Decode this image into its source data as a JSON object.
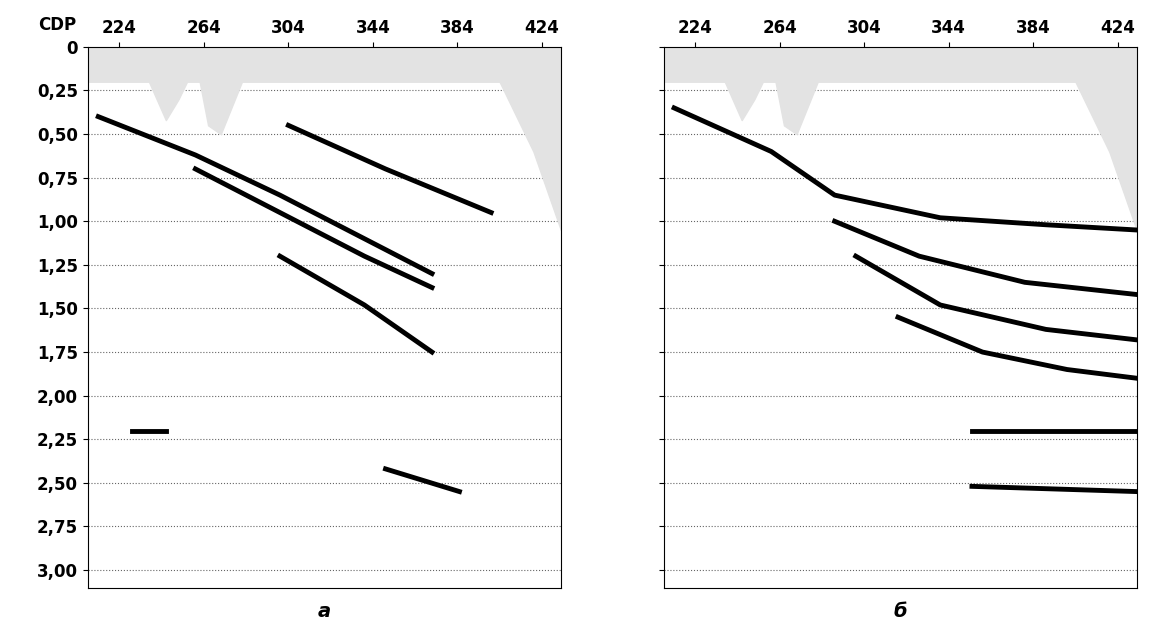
{
  "chart_data": [
    {
      "type": "line",
      "label": "а",
      "xlabel": "CDP",
      "grid": true,
      "tick_labels": true,
      "xlim": [
        209,
        433
      ],
      "ylim": [
        3.1,
        0
      ],
      "xticks": [
        224,
        264,
        304,
        344,
        384,
        424
      ],
      "yticks": [
        0,
        {
          "value": 0.25,
          "label": "0,25"
        },
        {
          "value": 0.5,
          "label": "0,50"
        },
        {
          "value": 0.75,
          "label": "0,75"
        },
        {
          "value": 1.0,
          "label": "1,00"
        },
        {
          "value": 1.25,
          "label": "1,25"
        },
        {
          "value": 1.5,
          "label": "1,50"
        },
        {
          "value": 1.75,
          "label": "1,75"
        },
        {
          "value": 2.0,
          "label": "2,00"
        },
        {
          "value": 2.25,
          "label": "2,25"
        },
        {
          "value": 2.5,
          "label": "2,50"
        },
        {
          "value": 2.75,
          "label": "2,75"
        },
        {
          "value": 3.0,
          "label": "3,00"
        }
      ],
      "series": [
        {
          "type": "area",
          "color": "#e3e3e3",
          "x": [
            209,
            238,
            246,
            252,
            256,
            262,
            266,
            272,
            282,
            404,
            420,
            433
          ],
          "values": [
            0.2,
            0.2,
            0.42,
            0.3,
            0.2,
            0.2,
            0.45,
            0.5,
            0.2,
            0.2,
            0.6,
            1.05
          ]
        },
        {
          "type": "line",
          "color": "#000000",
          "x": [
            214,
            260,
            300,
            340,
            372
          ],
          "values": [
            0.4,
            0.62,
            0.85,
            1.1,
            1.3
          ]
        },
        {
          "type": "line",
          "color": "#000000",
          "x": [
            260,
            300,
            340,
            372
          ],
          "values": [
            0.7,
            0.95,
            1.2,
            1.38
          ]
        },
        {
          "type": "line",
          "color": "#000000",
          "x": [
            300,
            340,
            372
          ],
          "values": [
            1.2,
            1.48,
            1.75
          ]
        },
        {
          "type": "line",
          "color": "#000000",
          "x": [
            304,
            350,
            400
          ],
          "values": [
            0.45,
            0.7,
            0.95
          ]
        },
        {
          "type": "line",
          "color": "#000000",
          "x": [
            230,
            246
          ],
          "values": [
            2.2,
            2.2
          ]
        },
        {
          "type": "line",
          "color": "#000000",
          "x": [
            350,
            385
          ],
          "values": [
            2.42,
            2.55
          ]
        }
      ]
    },
    {
      "type": "line",
      "label": "б",
      "grid": true,
      "tick_labels": "x",
      "xlim": [
        209,
        433
      ],
      "ylim": [
        3.1,
        0
      ],
      "xticks": [
        224,
        264,
        304,
        344,
        384,
        424
      ],
      "yticks": [
        0,
        0.25,
        0.5,
        0.75,
        1.0,
        1.25,
        1.5,
        1.75,
        2.0,
        2.25,
        2.5,
        2.75,
        3.0
      ],
      "series": [
        {
          "type": "area",
          "color": "#e3e3e3",
          "x": [
            209,
            238,
            246,
            252,
            256,
            262,
            266,
            272,
            282,
            404,
            420,
            433
          ],
          "values": [
            0.2,
            0.2,
            0.42,
            0.3,
            0.2,
            0.2,
            0.45,
            0.5,
            0.2,
            0.2,
            0.6,
            1.05
          ]
        },
        {
          "type": "line",
          "color": "#000000",
          "x": [
            214,
            260,
            290,
            340,
            390,
            433
          ],
          "values": [
            0.35,
            0.6,
            0.85,
            0.98,
            1.02,
            1.05
          ]
        },
        {
          "type": "line",
          "color": "#000000",
          "x": [
            290,
            330,
            380,
            433
          ],
          "values": [
            1.0,
            1.2,
            1.35,
            1.42
          ]
        },
        {
          "type": "line",
          "color": "#000000",
          "x": [
            300,
            340,
            390,
            433
          ],
          "values": [
            1.2,
            1.48,
            1.62,
            1.68
          ]
        },
        {
          "type": "line",
          "color": "#000000",
          "x": [
            320,
            360,
            400,
            433
          ],
          "values": [
            1.55,
            1.75,
            1.85,
            1.9
          ]
        },
        {
          "type": "line",
          "color": "#000000",
          "x": [
            355,
            433
          ],
          "values": [
            2.2,
            2.2
          ]
        },
        {
          "type": "line",
          "color": "#000000",
          "x": [
            355,
            433
          ],
          "values": [
            2.52,
            2.55
          ]
        }
      ]
    }
  ]
}
